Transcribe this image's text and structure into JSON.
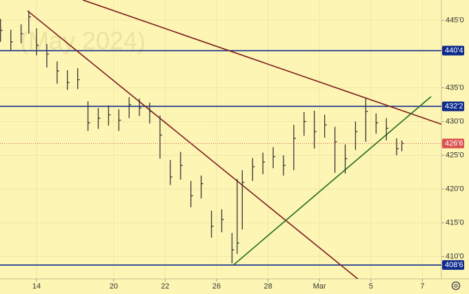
{
  "chart_data": {
    "type": "ohlc",
    "subtitle": "(May 2024)",
    "x": [
      -1.4,
      -1.0,
      -0.6,
      -0.3,
      0,
      0.4,
      0.8,
      1.2,
      1.6,
      2.0,
      2.4,
      2.8,
      3.2,
      3.6,
      4.0,
      4.4,
      4.8,
      5.2,
      5.6,
      6.0,
      6.4,
      6.8,
      7.2,
      7.6,
      7.8,
      8.0,
      8.4,
      8.8,
      9.2,
      9.6,
      10.0,
      10.4,
      10.8,
      11.2,
      11.6,
      12.0,
      12.4,
      12.8,
      13.2,
      13.6,
      14.0,
      14.2
    ],
    "high": [
      445.2,
      443.6,
      444.4,
      446.4,
      443.8,
      441.5,
      438.9,
      437.6,
      437.9,
      433.0,
      432.0,
      432.4,
      431.8,
      433.6,
      433.4,
      432.8,
      430.9,
      424.3,
      425.5,
      421.2,
      422.0,
      416.8,
      417.0,
      413.5,
      421.5,
      422.8,
      424.6,
      425.4,
      426.2,
      425.0,
      429.5,
      431.4,
      431.6,
      431.0,
      429.2,
      426.6,
      430.0,
      433.4,
      431.2,
      430.5,
      427.5,
      427.2
    ],
    "low": [
      441.8,
      440.5,
      441.6,
      443.0,
      439.8,
      438.0,
      435.6,
      434.7,
      434.8,
      428.6,
      428.9,
      429.4,
      428.6,
      430.5,
      430.8,
      429.7,
      424.5,
      420.6,
      421.4,
      417.3,
      418.6,
      412.8,
      413.6,
      409.0,
      410.4,
      414.0,
      421.2,
      422.2,
      423.1,
      422.0,
      422.8,
      427.9,
      426.0,
      427.6,
      422.4,
      422.3,
      425.8,
      427.0,
      428.2,
      427.2,
      425.0,
      425.6
    ],
    "close": [
      443.5,
      441.8,
      443.0,
      445.5,
      441.3,
      440.0,
      437.5,
      435.8,
      436.2,
      429.8,
      430.5,
      431.0,
      430.2,
      432.5,
      432.0,
      431.5,
      428.0,
      421.8,
      423.5,
      419.0,
      420.8,
      414.5,
      415.5,
      411.0,
      412.0,
      421.0,
      423.3,
      424.0,
      424.8,
      423.5,
      427.5,
      430.0,
      428.5,
      429.5,
      427.0,
      424.5,
      428.5,
      431.5,
      429.8,
      429.0,
      426.0,
      426.75
    ],
    "color": "#333333",
    "xlim": [
      -1.42,
      15.74
    ],
    "ylim": [
      406.7,
      448.0
    ],
    "yticks": [
      {
        "value": 410,
        "label": "410'0"
      },
      {
        "value": 415,
        "label": "415'0"
      },
      {
        "value": 420,
        "label": "420'0"
      },
      {
        "value": 425,
        "label": "425'0"
      },
      {
        "value": 430,
        "label": "430'0"
      },
      {
        "value": 435,
        "label": "435'0"
      },
      {
        "value": 445,
        "label": "445'0"
      }
    ],
    "xticks": [
      {
        "value": 0,
        "label": "14"
      },
      {
        "value": 3,
        "label": "20"
      },
      {
        "value": 5,
        "label": "22"
      },
      {
        "value": 7,
        "label": "26"
      },
      {
        "value": 9,
        "label": "28"
      },
      {
        "value": 11,
        "label": "Mar"
      },
      {
        "value": 13,
        "label": "5"
      },
      {
        "value": 15,
        "label": "7"
      }
    ],
    "grid": true,
    "levels": [
      {
        "value": 440.5,
        "label": "440'4",
        "color": "#0d2a8c"
      },
      {
        "value": 432.25,
        "label": "432'2",
        "color": "#0d2a8c"
      },
      {
        "value": 408.75,
        "label": "408'6",
        "color": "#0d2a8c"
      }
    ],
    "last_price": {
      "value": 426.75,
      "label": "426'6",
      "color": "#d9534f"
    },
    "trendlines": [
      {
        "x": [
          -0.35,
          12.52
        ],
        "y": [
          446.4,
          406.6
        ],
        "color": "#7b1a1a"
      },
      {
        "x": [
          1.8,
          15.74
        ],
        "y": [
          448.0,
          429.6
        ],
        "color": "#7b1a1a"
      },
      {
        "x": [
          7.64,
          15.34
        ],
        "y": [
          408.7,
          433.7
        ],
        "color": "#1e6b1e"
      }
    ]
  }
}
